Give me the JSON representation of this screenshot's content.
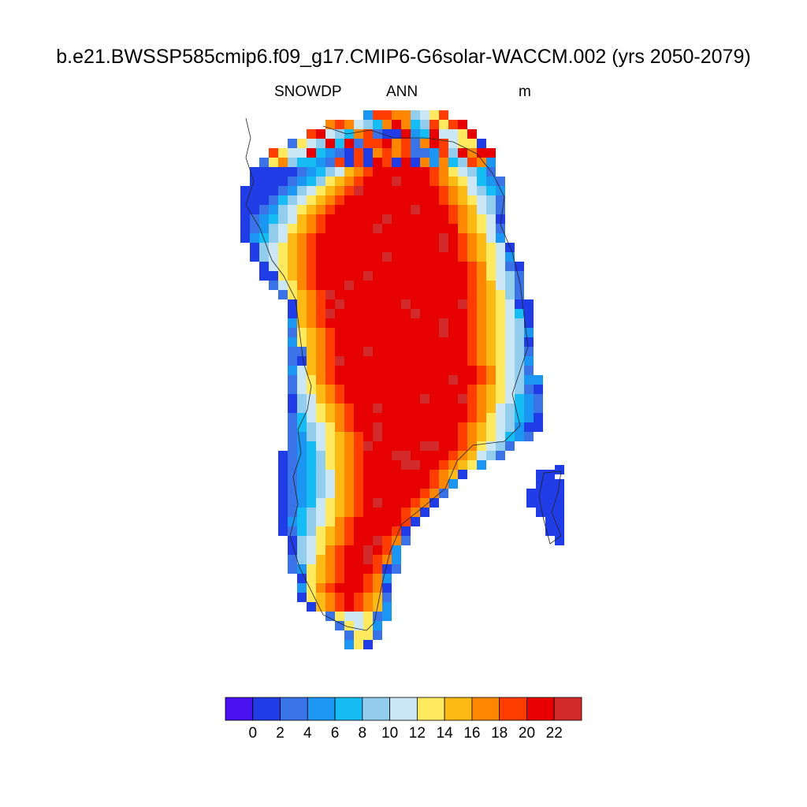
{
  "title": "b.e21.BWSSP585cmip6.f09_g17.CMIP6-G6solar-WACCM.002 (yrs 2050-2079)",
  "left_string": "SNOWDP",
  "center_string": "ANN",
  "right_string": "m",
  "colorbar": {
    "colors": [
      "#4A12F0",
      "#1F3CE6",
      "#3A72E8",
      "#1B96F3",
      "#16BDF4",
      "#92CDEE",
      "#CBE7F6",
      "#FFE95E",
      "#FDBA14",
      "#FF8600",
      "#FF3D00",
      "#E60000",
      "#D32B2B"
    ],
    "labels": [
      "0",
      "2",
      "4",
      "6",
      "8",
      "10",
      "12",
      "14",
      "16",
      "18",
      "20",
      "22"
    ]
  },
  "chart_data": {
    "type": "heatmap",
    "variable": "SNOWDP",
    "season": "ANN",
    "units": "m",
    "levels": [
      0,
      2,
      4,
      6,
      8,
      10,
      12,
      14,
      16,
      18,
      20,
      22
    ],
    "pattern": "Greenland snow depth: deep (>20 m) over the central ice sheet interior, decreasing through orange/yellow bands to <2 m along the coastal margins"
  }
}
